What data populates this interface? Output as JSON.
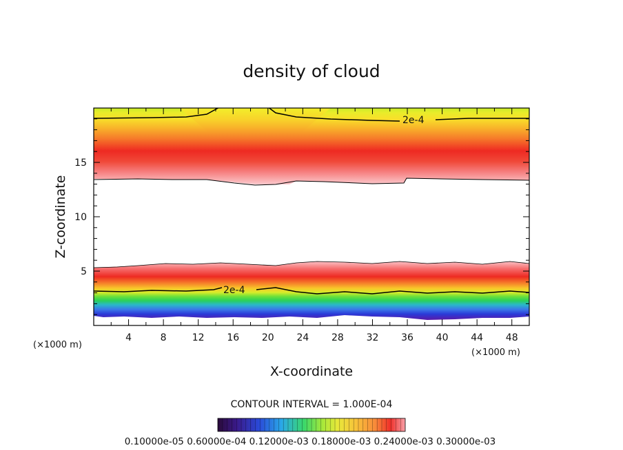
{
  "chart_data": {
    "type": "contour",
    "title": "density of cloud",
    "xlabel": "X-coordinate",
    "ylabel": "Z-coordinate",
    "x_unit": "(×1000 m)",
    "y_unit": "(×1000 m)",
    "xlim": [
      0,
      50
    ],
    "ylim": [
      0,
      20
    ],
    "xticks": [
      4,
      8,
      12,
      16,
      20,
      24,
      28,
      32,
      36,
      40,
      44,
      48
    ],
    "yticks": [
      5,
      10,
      15
    ],
    "contour_interval_text": "CONTOUR INTERVAL = 1.000E-04",
    "contour_label": "2e-4",
    "colorbar_labels_text": "0.10000e-05 0.60000e-04 0.12000e-03 0.18000e-03 0.24000e-03 0.30000e-03",
    "colorbar_min": 1e-06,
    "colorbar_max": 0.0003,
    "colormap": [
      "#2a0a3a",
      "#3a1a8a",
      "#2a4ad8",
      "#2aa8e8",
      "#3ad86a",
      "#a8e83a",
      "#e8e83a",
      "#f8c03a",
      "#f88a3a",
      "#f0302a",
      "#f8a0a8"
    ],
    "upper_layer": {
      "z_bottom_km": 13.3,
      "z_peak_km": 15.3,
      "z_top_km": 20.0,
      "contour_2e-4_z_km": 18.9
    },
    "lower_layer": {
      "z_bottom_km": 0.7,
      "z_peak_km": 4.6,
      "z_top_km": 5.6,
      "contour_2e-4_z_km": 3.3
    }
  }
}
